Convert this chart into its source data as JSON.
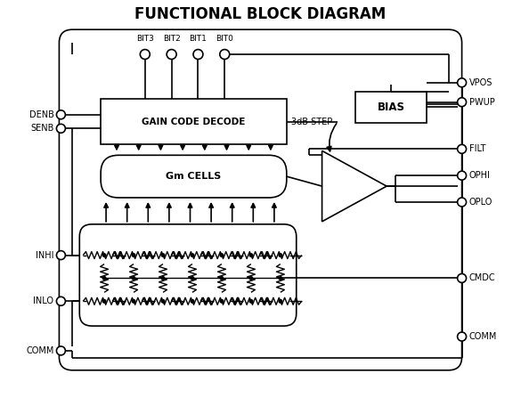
{
  "title": "FUNCTIONAL BLOCK DIAGRAM",
  "title_fontsize": 12,
  "title_fontweight": "bold",
  "bg_color": "#ffffff",
  "line_color": "#000000",
  "text_color": "#000000",
  "bit_labels": [
    "BIT3",
    "BIT2",
    "BIT1",
    "BIT0"
  ],
  "label_3db": "3dB STEP",
  "label_bias": "BIAS",
  "label_gain": "GAIN CODE DECODE",
  "label_gm": "Gm CELLS",
  "pin_labels_left": [
    "DENB",
    "SENB",
    "INHI",
    "INLO",
    "COMM"
  ],
  "pin_labels_right": [
    "VPOS",
    "PWUP",
    "FILT",
    "OPHI",
    "OPLO",
    "CMDC",
    "COMM"
  ]
}
